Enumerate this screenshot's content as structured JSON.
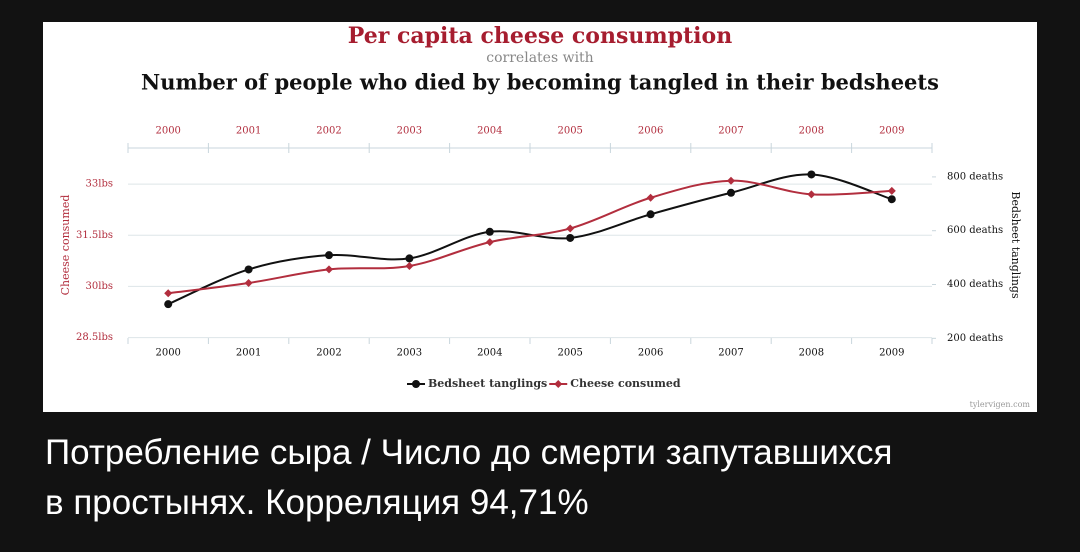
{
  "chart_data": {
    "type": "line",
    "title": "Per capita cheese consumption",
    "subtitle": "correlates with",
    "title_secondary": "Number of people who died by becoming tangled in their bedsheets",
    "categories": [
      "2000",
      "2001",
      "2002",
      "2003",
      "2004",
      "2005",
      "2006",
      "2007",
      "2008",
      "2009"
    ],
    "series": [
      {
        "name": "Bedsheet tanglings",
        "color": "#111111",
        "axis": "y2",
        "marker": "circle",
        "values": [
          327,
          456,
          509,
          497,
          596,
          573,
          661,
          741,
          809,
          717
        ]
      },
      {
        "name": "Cheese consumed",
        "color": "#b22e3e",
        "marker": "diamond",
        "values": [
          29.8,
          30.1,
          30.5,
          30.6,
          31.3,
          31.7,
          32.6,
          33.1,
          32.7,
          32.8
        ]
      }
    ],
    "ylabel": "Cheese consumed",
    "y2label": "Bedsheet tanglings",
    "ylim": [
      28.4,
      34
    ],
    "yticks": [
      {
        "value": 28.5,
        "label": "28.5lbs"
      },
      {
        "value": 30,
        "label": "30lbs"
      },
      {
        "value": 31.5,
        "label": "31.5lbs"
      },
      {
        "value": 33,
        "label": "33lbs"
      }
    ],
    "y2lim": [
      190,
      900
    ],
    "y2ticks": [
      {
        "value": 200,
        "label": "200 deaths"
      },
      {
        "value": 400,
        "label": "400 deaths"
      },
      {
        "value": 600,
        "label": "600 deaths"
      },
      {
        "value": 800,
        "label": "800 deaths"
      }
    ],
    "grid": true
  },
  "credit": "tylervigen.com",
  "caption": [
    "Потребление сыра / Число до смерти запутавшихся",
    "в простынях. Корреляция 94,71%"
  ]
}
